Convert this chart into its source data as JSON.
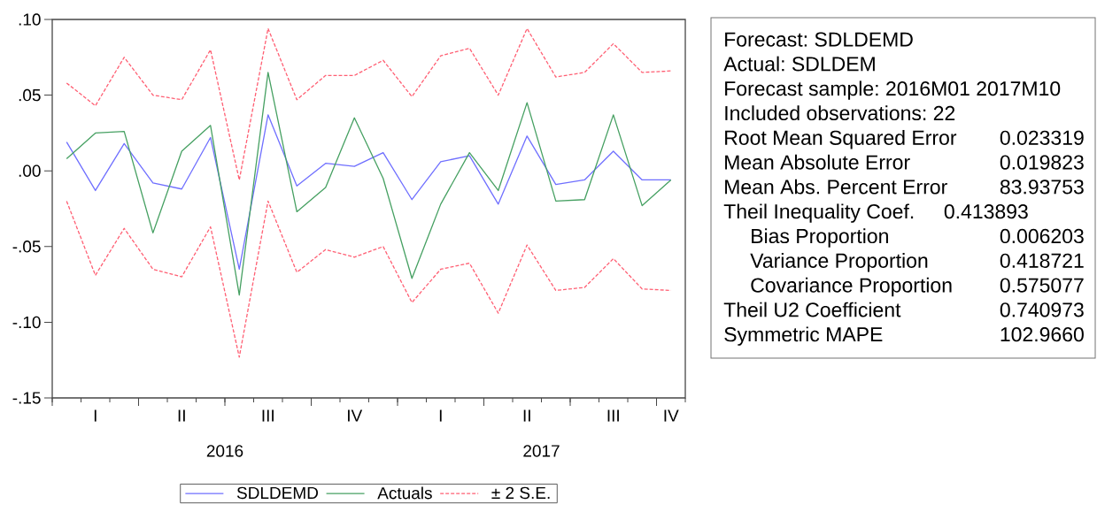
{
  "chart_data": [
    {
      "type": "line",
      "categories": [
        null,
        "I",
        null,
        null,
        "II",
        null,
        null,
        "III",
        null,
        null,
        "IV",
        null,
        null,
        "I",
        null,
        null,
        "II",
        null,
        null,
        "III",
        null,
        "IV"
      ],
      "series": [
        {
          "name": "SDLDEMD",
          "color": "#6f6fff",
          "values": [
            0.019,
            -0.013,
            0.018,
            -0.008,
            -0.012,
            0.022,
            -0.065,
            0.037,
            -0.01,
            0.005,
            0.003,
            0.012,
            -0.019,
            0.006,
            0.01,
            -0.022,
            0.023,
            -0.009,
            -0.006,
            0.013,
            -0.006,
            -0.006
          ]
        },
        {
          "name": "Actuals",
          "color": "#46a062",
          "values": [
            0.008,
            0.025,
            0.026,
            -0.041,
            0.013,
            0.03,
            -0.082,
            0.065,
            -0.027,
            -0.011,
            0.035,
            -0.005,
            -0.071,
            -0.022,
            0.012,
            -0.013,
            0.045,
            -0.02,
            -0.019,
            0.037,
            -0.023,
            -0.006
          ]
        },
        {
          "name": "± 2 S.E.",
          "color": "#ff5f73",
          "line_style": "dashed",
          "values": [
            0.058,
            0.043,
            0.075,
            0.05,
            0.047,
            0.08,
            -0.006,
            0.094,
            0.047,
            0.063,
            0.063,
            0.073,
            0.049,
            0.076,
            0.081,
            0.05,
            0.094,
            0.062,
            0.065,
            0.084,
            0.065,
            0.066
          ]
        },
        {
          "color": "#ff5f73",
          "line_style": "dashed",
          "values": [
            -0.02,
            -0.069,
            -0.038,
            -0.065,
            -0.07,
            -0.037,
            -0.123,
            -0.02,
            -0.067,
            -0.052,
            -0.057,
            -0.05,
            -0.087,
            -0.065,
            -0.061,
            -0.094,
            -0.049,
            -0.079,
            -0.077,
            -0.058,
            -0.078,
            -0.079
          ]
        }
      ],
      "ylim": [
        -0.15,
        0.1
      ],
      "yticks": [
        {
          "value": 0.1,
          "label": ".10"
        },
        {
          "value": 0.05,
          "label": ".05"
        },
        {
          "value": 0,
          "label": ".00"
        },
        {
          "value": -0.05,
          "label": "-.05"
        },
        {
          "value": -0.1,
          "label": "-.10"
        },
        {
          "value": -0.15,
          "label": "-.15"
        }
      ],
      "annotations": [
        "2016",
        "2017"
      ],
      "legend": "bottom"
    },
    {
      "type": "other",
      "annotations": [
        "Forecast: SDLDEMD",
        "Actual: SDLDEM",
        "Forecast sample: 2016M01 2017M10",
        "Included observations: 22",
        "Root Mean Squared Error",
        "0.023319",
        "Mean Absolute Error",
        "0.019823",
        "Mean Abs. Percent Error",
        "83.93753",
        "Theil Inequality Coef.",
        "0.413893",
        "Bias Proportion",
        "0.006203",
        "Variance Proportion",
        "0.418721",
        "Covariance Proportion",
        "0.575077",
        "Theil U2 Coefficient",
        "0.740973",
        "Symmetric MAPE",
        "102.9660"
      ]
    }
  ]
}
